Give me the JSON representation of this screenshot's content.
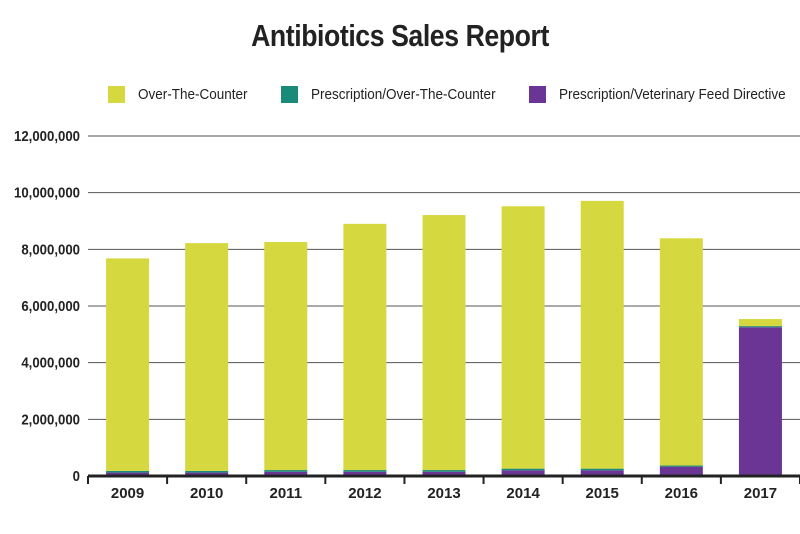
{
  "chart_data": {
    "type": "bar",
    "stacked": true,
    "title": "Antibiotics Sales Report",
    "xlabel": "",
    "ylabel": "",
    "ylim": [
      0,
      12000000
    ],
    "yticks": [
      0,
      2000000,
      4000000,
      6000000,
      8000000,
      10000000,
      12000000
    ],
    "ytick_labels": [
      "0",
      "2,000,000",
      "4,000,000",
      "6,000,000",
      "8,000,000",
      "10,000,000",
      "12,000,000"
    ],
    "grid": true,
    "legend_position": "top",
    "categories": [
      "2009",
      "2010",
      "2011",
      "2012",
      "2013",
      "2014",
      "2015",
      "2016",
      "2017"
    ],
    "series": [
      {
        "name": "Prescription/Veterinary Feed Directive",
        "color": "#6a3595",
        "values": [
          120000,
          120000,
          150000,
          150000,
          150000,
          200000,
          200000,
          330000,
          5250000
        ]
      },
      {
        "name": "Prescription/Over-The-Counter",
        "color": "#1b8a78",
        "values": [
          60000,
          60000,
          60000,
          60000,
          60000,
          60000,
          60000,
          40000,
          40000
        ]
      },
      {
        "name": "Over-The-Counter",
        "color": "#d6d840",
        "values": [
          7500000,
          8040000,
          8050000,
          8690000,
          9000000,
          9260000,
          9450000,
          8020000,
          250000
        ]
      }
    ]
  },
  "legend": {
    "items": [
      {
        "label": "Over-The-Counter",
        "color": "#d6d840"
      },
      {
        "label": "Prescription/Over-The-Counter",
        "color": "#1b8a78"
      },
      {
        "label": "Prescription/Veterinary Feed Directive",
        "color": "#6a3595"
      }
    ]
  }
}
